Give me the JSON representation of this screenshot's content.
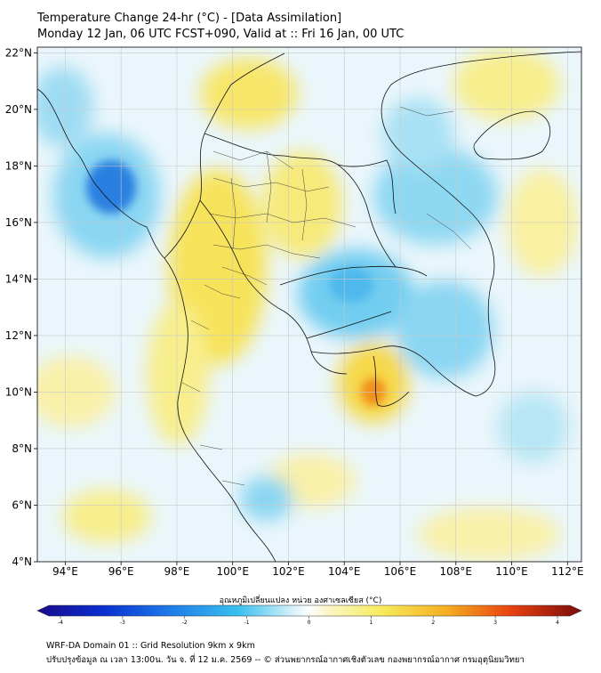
{
  "title": {
    "line1": "Temperature Change 24-hr (°C) - [Data Assimilation]",
    "line2": "Monday 12 Jan, 06 UTC FCST+090, Valid at :: Fri 16 Jan, 00 UTC"
  },
  "map": {
    "lat_ticks": [
      "22°N",
      "20°N",
      "18°N",
      "16°N",
      "14°N",
      "12°N",
      "10°N",
      "8°N",
      "6°N",
      "4°N"
    ],
    "lon_ticks": [
      "94°E",
      "96°E",
      "98°E",
      "100°E",
      "102°E",
      "104°E",
      "106°E",
      "108°E",
      "110°E",
      "112°E"
    ],
    "lat_range": [
      4,
      22.2
    ],
    "lon_range": [
      93,
      112.5
    ],
    "colors": {
      "background": "#ffffff",
      "land_border": "#000000",
      "grid": "#c8c8c8",
      "warm": "#f5e04a",
      "hot": "#f08a1c",
      "cool": "#74d0f0",
      "cold": "#1c6fd6"
    }
  },
  "colorbar": {
    "label": "อุณหภูมิเปลี่ยนแปลง หน่วย องศาเซลเซียส (°C)",
    "ticks": [
      "-4",
      "-3",
      "-2",
      "-1",
      "0",
      "1",
      "2",
      "3",
      "4"
    ],
    "range": [
      -4,
      4
    ]
  },
  "footer": {
    "line1": "WRF-DA Domain 01 :: Grid Resolution 9km x 9km",
    "line2": "ปรับปรุงข้อมูล ณ เวลา 13:00น. วัน จ. ที่ 12 ม.ค. 2569 -- © ส่วนพยากรณ์อากาศเชิงตัวเลข กองพยากรณ์อากาศ กรมอุตุนิยมวิทยา"
  }
}
